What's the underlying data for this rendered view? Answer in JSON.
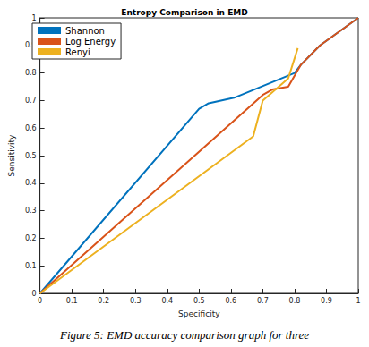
{
  "chart_data": {
    "type": "line",
    "title": "Entropy Comparison in EMD",
    "caption": "Figure 5: EMD accuracy comparison graph for three",
    "x_label": "Specificity",
    "y_label": "Sensitivity",
    "series": [
      {
        "name": "Shannon",
        "color": "#0072bd",
        "x": [
          0,
          0.5,
          0.53,
          0.61,
          0.8,
          0.82,
          0.88,
          1
        ],
        "values": [
          0,
          0.67,
          0.69,
          0.71,
          0.8,
          0.83,
          0.9,
          1
        ]
      },
      {
        "name": "Log Energy",
        "color": "#d95319",
        "x": [
          0,
          0.7,
          0.73,
          0.78,
          0.82,
          0.88,
          1
        ],
        "values": [
          0,
          0.72,
          0.74,
          0.75,
          0.83,
          0.9,
          1
        ]
      },
      {
        "name": "Renyi",
        "color": "#edb120",
        "x": [
          0,
          0.67,
          0.7,
          0.78,
          0.81
        ],
        "values": [
          0,
          0.57,
          0.7,
          0.78,
          0.89
        ]
      }
    ],
    "xlim": [
      0,
      1
    ],
    "xticks": [
      0,
      0.1,
      0.2,
      0.3,
      0.4,
      0.5,
      0.6,
      0.7,
      0.8,
      0.9,
      1
    ],
    "ylim": [
      0,
      1
    ],
    "yticks": [
      0,
      0.1,
      0.2,
      0.3,
      0.4,
      0.5,
      0.6,
      0.7,
      0.8,
      0.9,
      1
    ],
    "grid": false,
    "legend": "upper left"
  }
}
